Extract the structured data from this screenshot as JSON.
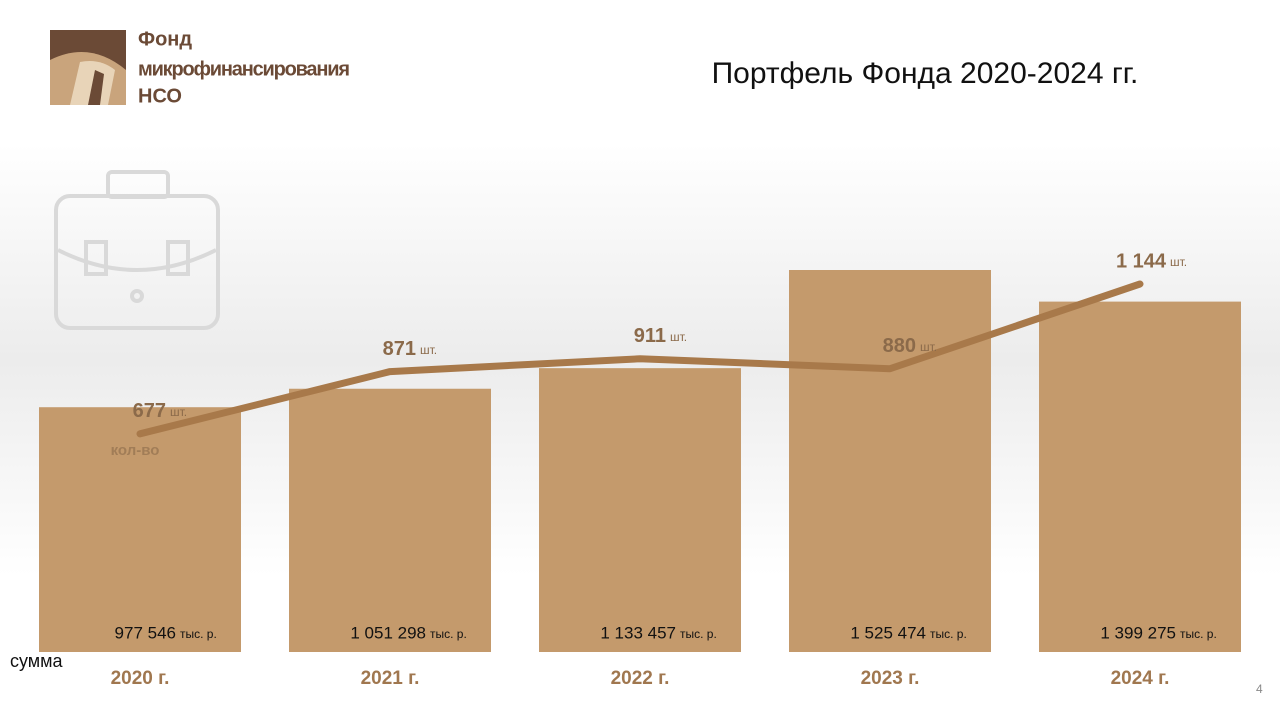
{
  "logo": {
    "lines": [
      "Фонд",
      "микрофинансирования",
      "НСО"
    ]
  },
  "page_number": "4",
  "chart_data": {
    "type": "bar-line",
    "title": "Портфель Фонда 2020-2024 гг.",
    "categories": [
      "2020 г.",
      "2021 г.",
      "2022 г.",
      "2023 г.",
      "2024 г."
    ],
    "series": [
      {
        "name": "сумма",
        "type": "bar",
        "color": "#c49a6c",
        "unit": "тыс. р.",
        "values": [
          977546,
          1051298,
          1133457,
          1525474,
          1399275
        ],
        "value_labels": [
          "977 546",
          "1 051 298",
          "1 133 457",
          "1 525 474",
          "1 399 275"
        ]
      },
      {
        "name": "кол-во",
        "type": "line",
        "color": "#a8794a",
        "unit": "шт.",
        "values": [
          677,
          871,
          911,
          880,
          1144
        ],
        "value_labels": [
          "677",
          "871",
          "911",
          "880",
          "1 144"
        ]
      }
    ]
  }
}
